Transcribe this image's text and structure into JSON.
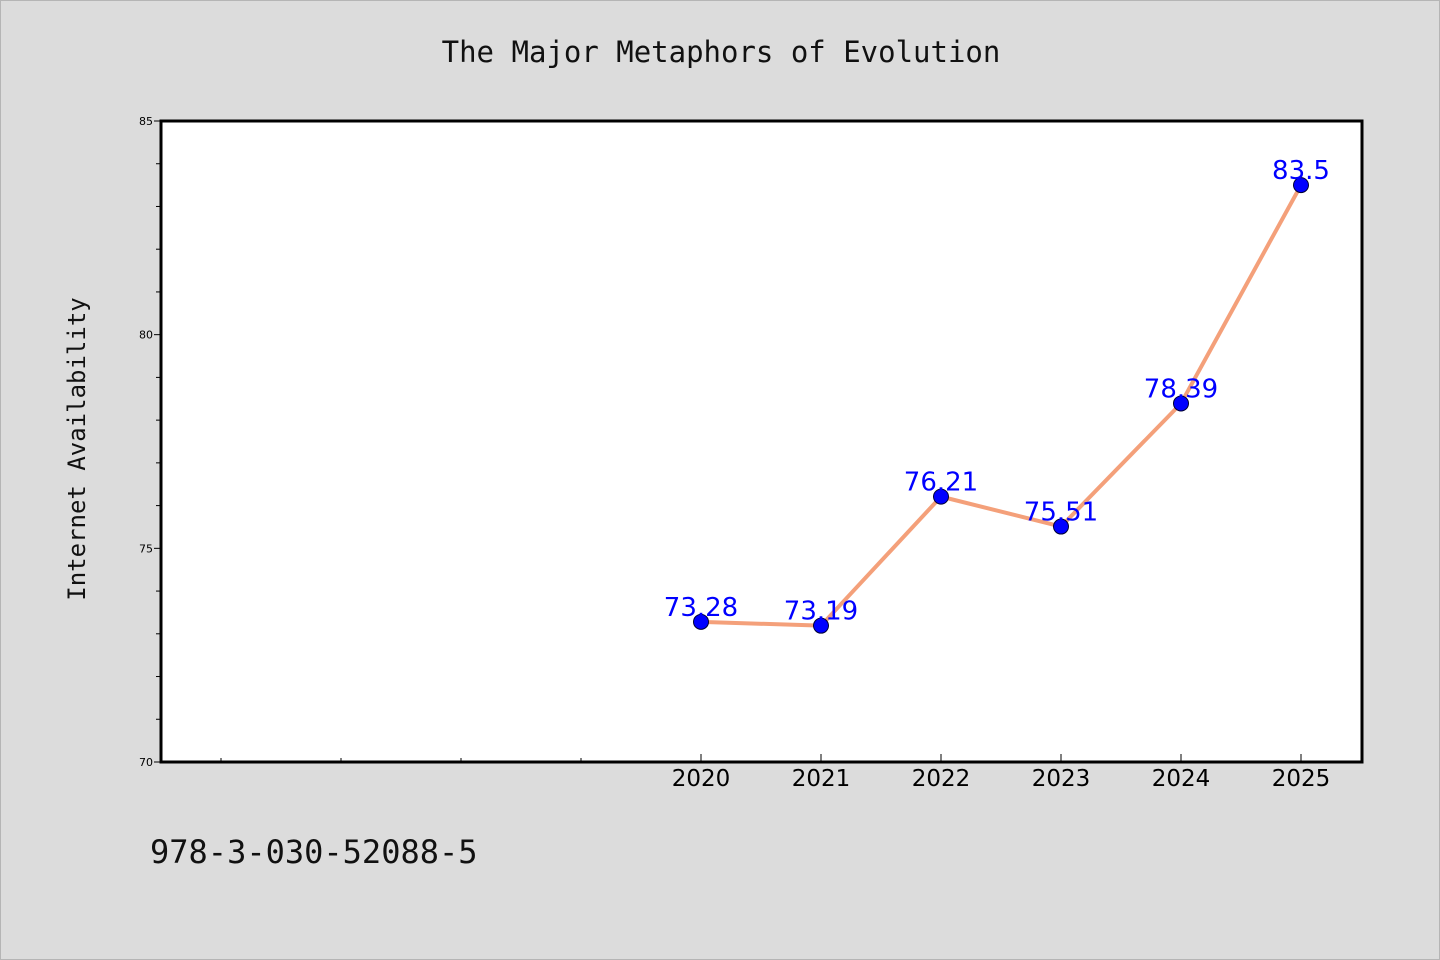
{
  "chart_data": {
    "type": "line",
    "title": "The Major Metaphors of Evolution",
    "xlabel": "",
    "ylabel": "Internet Availability",
    "categories": [
      "2020",
      "2021",
      "2022",
      "2023",
      "2024",
      "2025"
    ],
    "values": [
      73.28,
      73.19,
      76.21,
      75.51,
      78.39,
      83.5
    ],
    "value_labels": [
      "73.28",
      "73.19",
      "76.21",
      "75.51",
      "78.39",
      "83.5"
    ],
    "ylim": [
      70,
      85
    ],
    "yticks": [
      "70",
      "75",
      "80",
      "85"
    ],
    "grid": false,
    "legend": "none",
    "line_color": "#f4a07a",
    "marker_color": "#0000ff",
    "label_color": "#0000ff"
  },
  "footer": {
    "isbn": "978-3-030-52088-5"
  }
}
